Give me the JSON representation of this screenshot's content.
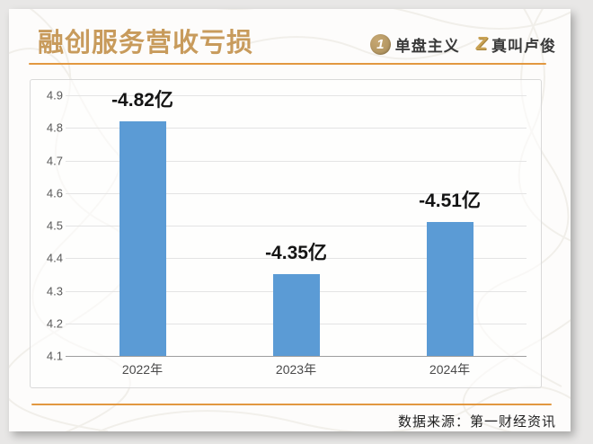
{
  "page": {
    "background_color": "#e8e7e6",
    "card_color": "#fdfcfb",
    "accent_color": "#e29840",
    "title_color": "#c89b5c"
  },
  "header": {
    "title": "融创服务营收亏损",
    "brand1": {
      "icon": "1",
      "label": "单盘主义"
    },
    "brand2": {
      "icon": "Z",
      "label": "真叫卢俊"
    }
  },
  "chart_data": {
    "type": "bar",
    "title": "融创服务营收亏损",
    "categories": [
      "2022年",
      "2023年",
      "2024年"
    ],
    "values": [
      4.82,
      4.35,
      4.51
    ],
    "signed_values": [
      -4.82,
      -4.35,
      -4.51
    ],
    "data_labels": [
      "-4.82亿",
      "-4.35亿",
      "-4.51亿"
    ],
    "unit": "亿",
    "ylim": [
      4.1,
      4.9
    ],
    "yticks": [
      4.9,
      4.8,
      4.7,
      4.6,
      4.5,
      4.4,
      4.3,
      4.2,
      4.1
    ],
    "bar_color": "#5B9BD5",
    "grid": true,
    "legend": false,
    "xlabel": "",
    "ylabel": ""
  },
  "footer": {
    "source": "数据来源：第一财经资讯"
  }
}
